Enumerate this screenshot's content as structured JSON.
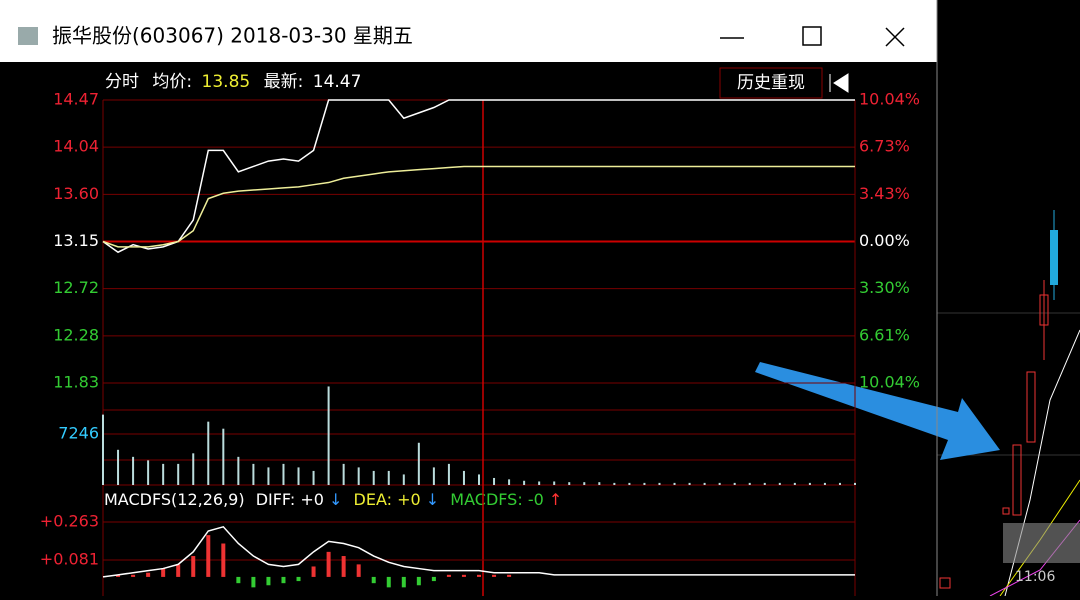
{
  "window": {
    "title": "振华股份(603067) 2018-03-30 星期五"
  },
  "header": {
    "mode": "分时",
    "avg_label": "均价:",
    "avg": "13.85",
    "latest_label": "最新:",
    "latest": "14.47",
    "history_button": "历史重现"
  },
  "price_axis": {
    "left": [
      "14.47",
      "14.04",
      "13.60",
      "13.15",
      "12.72",
      "12.28",
      "11.83"
    ],
    "right": [
      "10.04%",
      "6.73%",
      "3.43%",
      "0.00%",
      "3.30%",
      "6.61%",
      "10.04%"
    ],
    "ylim": [
      11.83,
      14.47
    ]
  },
  "volume_axis": {
    "label": "7246",
    "value": 7246
  },
  "macd_header": {
    "name": "MACDFS(12,26,9)",
    "diff": "DIFF: +0",
    "diff_arrow": "↓",
    "dea": "DEA: +0",
    "dea_arrow": "↓",
    "macdfs": "MACDFS: -0",
    "macdfs_arrow": "↑"
  },
  "macd_axis": [
    {
      "value": 0.263,
      "label": "+0.263"
    },
    {
      "value": 0.081,
      "label": "+0.081"
    }
  ],
  "price": [
    13.15,
    13.05,
    13.12,
    13.08,
    13.1,
    13.15,
    13.35,
    14.0,
    14.0,
    13.8,
    13.85,
    13.9,
    13.92,
    13.9,
    14.0,
    14.47,
    14.47,
    14.47,
    14.47,
    14.47,
    14.3,
    14.35,
    14.4,
    14.47,
    14.47,
    14.47,
    14.47,
    14.47,
    14.47,
    14.47,
    14.47,
    14.47,
    14.47,
    14.47,
    14.47,
    14.47,
    14.47,
    14.47,
    14.47,
    14.47,
    14.47,
    14.47,
    14.47,
    14.47,
    14.47,
    14.47,
    14.47,
    14.47,
    14.47,
    14.47,
    14.47
  ],
  "avg_price": [
    13.15,
    13.1,
    13.1,
    13.1,
    13.12,
    13.15,
    13.25,
    13.55,
    13.6,
    13.62,
    13.63,
    13.64,
    13.65,
    13.66,
    13.68,
    13.7,
    13.74,
    13.76,
    13.78,
    13.8,
    13.81,
    13.82,
    13.83,
    13.84,
    13.85,
    13.85,
    13.85,
    13.85,
    13.85,
    13.85,
    13.85,
    13.85,
    13.85,
    13.85,
    13.85,
    13.85,
    13.85,
    13.85,
    13.85,
    13.85,
    13.85,
    13.85,
    13.85,
    13.85,
    13.85,
    13.85,
    13.85,
    13.85,
    13.85,
    13.85,
    13.85
  ],
  "volume": [
    10000,
    5000,
    4000,
    3500,
    3000,
    3000,
    4500,
    9000,
    8000,
    4000,
    3000,
    2500,
    3000,
    2500,
    2000,
    14000,
    3000,
    2500,
    2000,
    2000,
    1500,
    6000,
    2500,
    3000,
    2000,
    1500,
    1000,
    800,
    600,
    500,
    500,
    400,
    400,
    400,
    300,
    300,
    300,
    300,
    300,
    300,
    300,
    300,
    300,
    300,
    300,
    300,
    300,
    300,
    300,
    300,
    300
  ],
  "macd_hist": [
    0,
    0.01,
    0.01,
    0.02,
    0.04,
    0.06,
    0.1,
    0.2,
    0.16,
    -0.03,
    -0.05,
    -0.04,
    -0.03,
    -0.02,
    0.05,
    0.12,
    0.1,
    0.06,
    -0.03,
    -0.05,
    -0.05,
    -0.04,
    -0.02,
    0.01,
    0.01,
    0.01,
    0.01,
    0.01,
    0,
    0,
    0,
    0,
    0,
    0,
    0,
    0,
    0,
    0,
    0,
    0,
    0,
    0,
    0,
    0,
    0,
    0,
    0,
    0,
    0,
    0,
    0
  ],
  "macd_diff": [
    0,
    0.01,
    0.02,
    0.03,
    0.04,
    0.06,
    0.12,
    0.22,
    0.24,
    0.16,
    0.1,
    0.06,
    0.05,
    0.06,
    0.12,
    0.17,
    0.16,
    0.14,
    0.1,
    0.07,
    0.05,
    0.04,
    0.03,
    0.03,
    0.03,
    0.03,
    0.02,
    0.02,
    0.02,
    0.02,
    0.01,
    0.01,
    0.01,
    0.01,
    0.01,
    0.01,
    0.01,
    0.01,
    0.01,
    0.01,
    0.01,
    0.01,
    0.01,
    0.01,
    0.01,
    0.01,
    0.01,
    0.01,
    0.01,
    0.01,
    0.01
  ]
}
